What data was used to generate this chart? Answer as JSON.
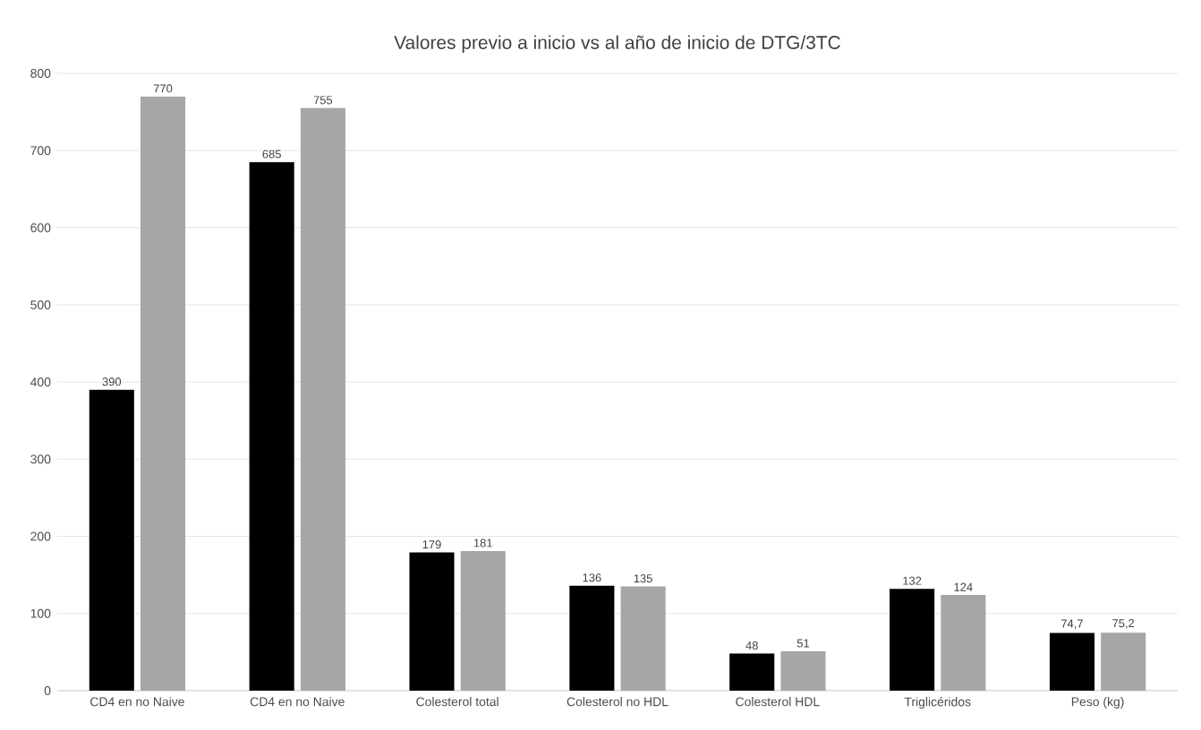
{
  "chart_data": {
    "type": "bar",
    "title": "Valores previo a inicio vs al año de inicio de DTG/3TC",
    "categories": [
      "CD4 en no Naive",
      "CD4 en no Naive",
      "Colesterol total",
      "Colesterol no HDL",
      "Colesterol HDL",
      "Triglicéridos",
      "Peso (kg)"
    ],
    "series": [
      {
        "color": "#000000",
        "values": [
          390,
          685,
          179,
          136,
          48,
          132,
          74.7
        ],
        "value_labels": [
          "390",
          "685",
          "179",
          "136",
          "48",
          "132",
          "74,7"
        ]
      },
      {
        "color": "#a6a6a6",
        "values": [
          770,
          755,
          181,
          135,
          51,
          124,
          75.2
        ],
        "value_labels": [
          "770",
          "755",
          "181",
          "135",
          "51",
          "124",
          "75,2"
        ]
      }
    ],
    "ylim": [
      0,
      800
    ],
    "yticks": [
      0,
      100,
      200,
      300,
      400,
      500,
      600,
      700,
      800
    ],
    "grid": "y"
  }
}
